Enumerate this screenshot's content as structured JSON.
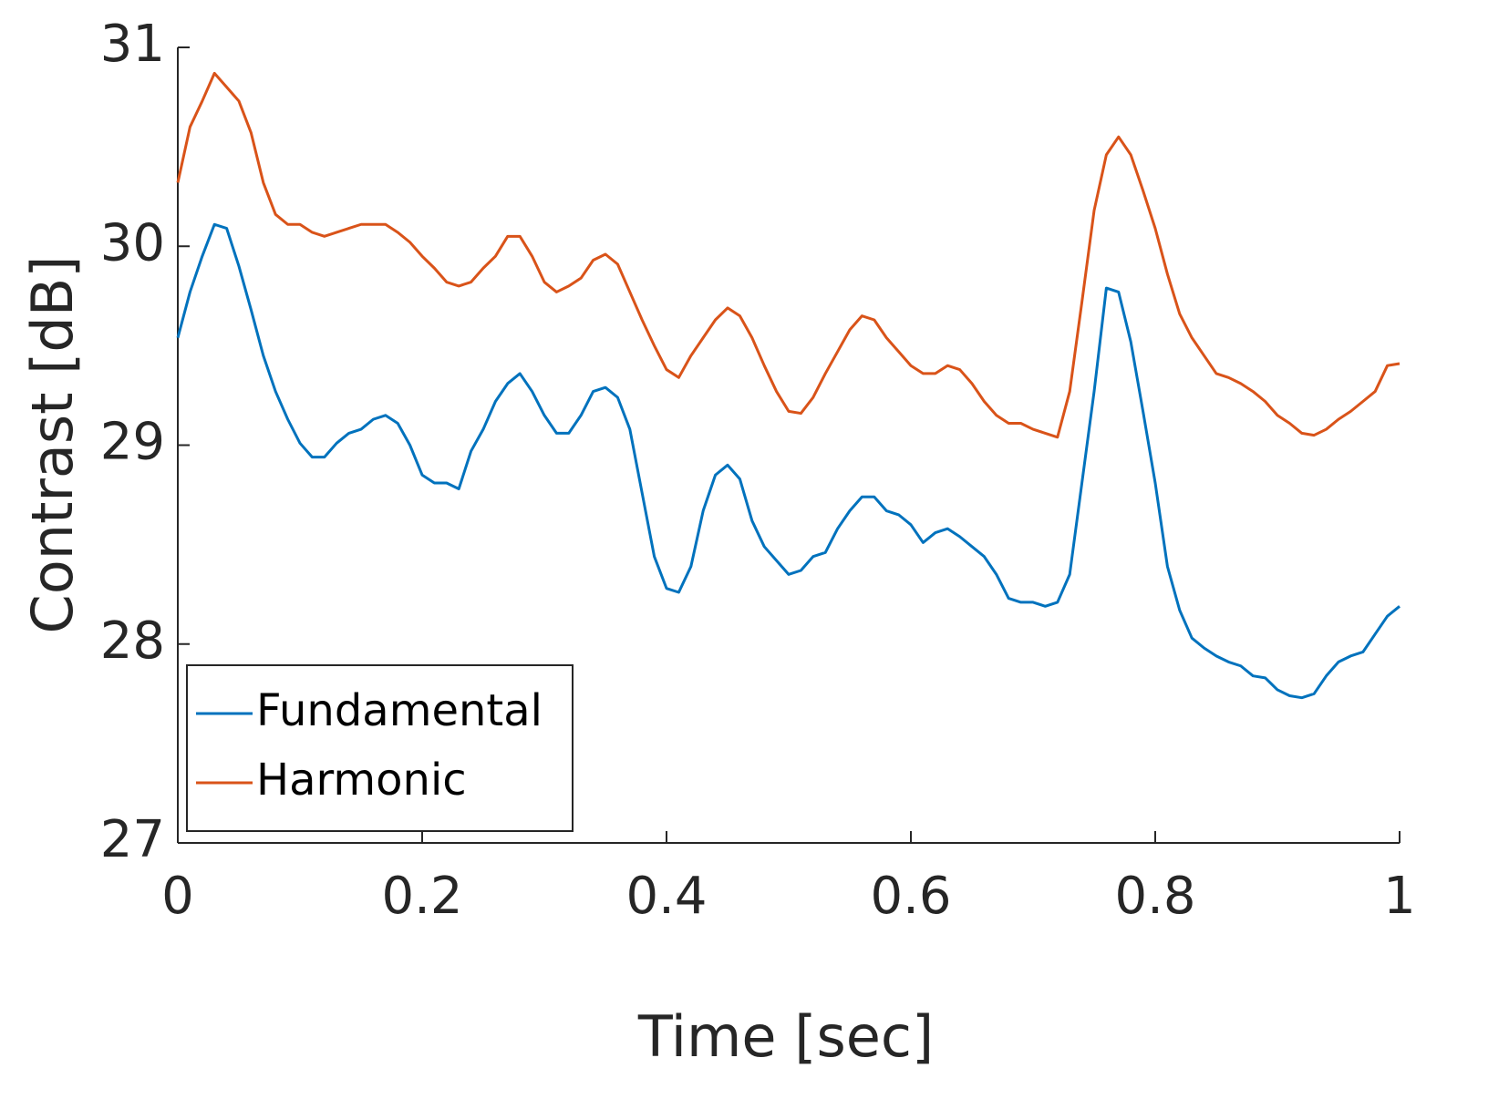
{
  "chart_data": {
    "type": "line",
    "xlabel": "Time [sec]",
    "ylabel": "Contrast [dB]",
    "xlim": [
      0,
      1
    ],
    "ylim": [
      27,
      31
    ],
    "xticks": [
      0,
      0.2,
      0.4,
      0.6,
      0.8,
      1
    ],
    "yticks": [
      27,
      28,
      29,
      30,
      31
    ],
    "legend": "lower left",
    "x": [
      0,
      0.01,
      0.02,
      0.03,
      0.04,
      0.05,
      0.06,
      0.07,
      0.08,
      0.09,
      0.1,
      0.11,
      0.12,
      0.13,
      0.14,
      0.15,
      0.16,
      0.17,
      0.18,
      0.19,
      0.2,
      0.21,
      0.22,
      0.23,
      0.24,
      0.25,
      0.26,
      0.27,
      0.28,
      0.29,
      0.3,
      0.31,
      0.32,
      0.33,
      0.34,
      0.35,
      0.36,
      0.37,
      0.38,
      0.39,
      0.4,
      0.41,
      0.42,
      0.43,
      0.44,
      0.45,
      0.46,
      0.47,
      0.48,
      0.49,
      0.5,
      0.51,
      0.52,
      0.53,
      0.54,
      0.55,
      0.56,
      0.57,
      0.58,
      0.59,
      0.6,
      0.61,
      0.62,
      0.63,
      0.64,
      0.65,
      0.66,
      0.67,
      0.68,
      0.69,
      0.7,
      0.71,
      0.72,
      0.73,
      0.74,
      0.75,
      0.76,
      0.77,
      0.78,
      0.79,
      0.8,
      0.81,
      0.82,
      0.83,
      0.84,
      0.85,
      0.86,
      0.87,
      0.88,
      0.89,
      0.9,
      0.91,
      0.92,
      0.93,
      0.94,
      0.95,
      0.96,
      0.97,
      0.98,
      0.99,
      1
    ],
    "series": [
      {
        "name": "Fundamental",
        "color": "#0072bd",
        "values": [
          29.54,
          29.77,
          29.95,
          30.11,
          30.09,
          29.9,
          29.68,
          29.45,
          29.27,
          29.13,
          29.01,
          28.94,
          28.94,
          29.01,
          29.06,
          29.08,
          29.13,
          29.15,
          29.11,
          29.0,
          28.85,
          28.81,
          28.81,
          28.78,
          28.97,
          29.08,
          29.22,
          29.31,
          29.36,
          29.27,
          29.15,
          29.06,
          29.06,
          29.15,
          29.27,
          29.29,
          29.24,
          29.08,
          28.76,
          28.44,
          28.28,
          28.26,
          28.39,
          28.67,
          28.85,
          28.9,
          28.83,
          28.62,
          28.49,
          28.42,
          28.35,
          28.37,
          28.44,
          28.46,
          28.58,
          28.67,
          28.74,
          28.74,
          28.67,
          28.65,
          28.6,
          28.51,
          28.56,
          28.58,
          28.54,
          28.49,
          28.44,
          28.35,
          28.23,
          28.21,
          28.21,
          28.19,
          28.21,
          28.35,
          28.81,
          29.27,
          29.79,
          29.77,
          29.52,
          29.17,
          28.81,
          28.39,
          28.17,
          28.03,
          27.98,
          27.94,
          27.91,
          27.89,
          27.84,
          27.83,
          27.77,
          27.74,
          27.73,
          27.75,
          27.84,
          27.91,
          27.94,
          27.96,
          28.05,
          28.14,
          28.19
        ]
      },
      {
        "name": "Harmonic",
        "color": "#d95319",
        "values": [
          30.32,
          30.6,
          30.73,
          30.87,
          30.8,
          30.73,
          30.57,
          30.32,
          30.16,
          30.11,
          30.11,
          30.07,
          30.05,
          30.07,
          30.09,
          30.11,
          30.11,
          30.11,
          30.07,
          30.02,
          29.95,
          29.89,
          29.82,
          29.8,
          29.82,
          29.89,
          29.95,
          30.05,
          30.05,
          29.95,
          29.82,
          29.77,
          29.8,
          29.84,
          29.93,
          29.96,
          29.91,
          29.77,
          29.63,
          29.5,
          29.38,
          29.34,
          29.45,
          29.54,
          29.63,
          29.69,
          29.65,
          29.54,
          29.4,
          29.27,
          29.17,
          29.16,
          29.24,
          29.36,
          29.47,
          29.58,
          29.65,
          29.63,
          29.54,
          29.47,
          29.4,
          29.36,
          29.36,
          29.4,
          29.38,
          29.31,
          29.22,
          29.15,
          29.11,
          29.11,
          29.08,
          29.06,
          29.04,
          29.27,
          29.72,
          30.18,
          30.46,
          30.55,
          30.46,
          30.28,
          30.09,
          29.86,
          29.66,
          29.54,
          29.45,
          29.36,
          29.34,
          29.31,
          29.27,
          29.22,
          29.15,
          29.11,
          29.06,
          29.05,
          29.08,
          29.13,
          29.17,
          29.22,
          29.27,
          29.4,
          29.41
        ]
      }
    ]
  }
}
